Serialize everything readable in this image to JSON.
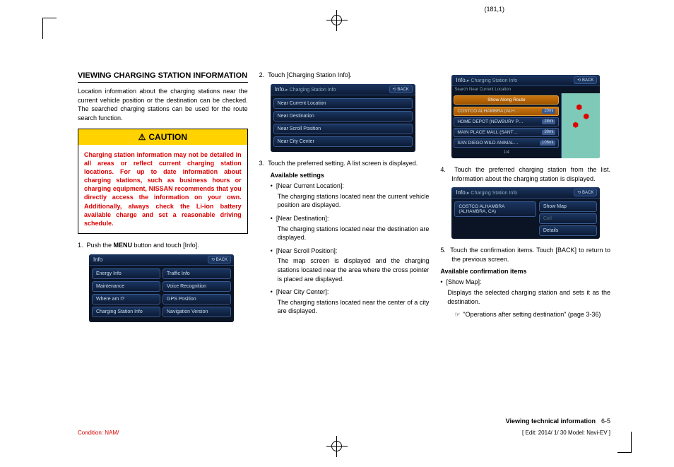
{
  "page_coord": "(181,1)",
  "heading": "VIEWING CHARGING STATION INFORMATION",
  "intro": "Location information about the charging stations near the current vehicle position or the destination can be checked. The searched charging stations can be used for the route search function.",
  "caution_title": "CAUTION",
  "caution_body": "Charging station information may not be detailed in all areas or reflect current charging station locations. For up to date information about charging stations, such as business hours or charging equipment, NISSAN recommends that you directly access the information on your own. Additionally, always check the Li-ion battery available charge and set a reasonable driving schedule.",
  "step1_pre": "Push the ",
  "step1_bold": "MENU",
  "step1_post": " button and touch [Info].",
  "screen1": {
    "title": "Info",
    "back": "BACK",
    "rows": [
      [
        "Energy Info",
        "Traffic Info"
      ],
      [
        "Maintenance",
        "Voice Recognition"
      ],
      [
        "Where am I?",
        "GPS Position"
      ],
      [
        "Charging Station Info",
        "Navigation Version"
      ]
    ]
  },
  "step2": "Touch [Charging Station Info].",
  "screen2": {
    "title": "Info.",
    "crumb": "Charging Station Info",
    "back": "BACK",
    "items": [
      "Near Current Location",
      "Near Destination",
      "Near Scroll Position",
      "Near City Center"
    ]
  },
  "step3": "Touch the preferred setting. A list screen is displayed.",
  "avail_settings": "Available settings",
  "settings": [
    {
      "label": "[Near Current Location]:",
      "desc": "The charging stations located near the current vehicle position are displayed."
    },
    {
      "label": "[Near Destination]:",
      "desc": "The charging stations located near the destination are displayed."
    },
    {
      "label": "[Near Scroll Position]:",
      "desc": "The map screen is displayed and the charging stations located near the area where the cross pointer is placed are displayed."
    },
    {
      "label": "[Near City Center]:",
      "desc": "The charging stations located near the center of a city are displayed."
    }
  ],
  "screen3": {
    "title": "Info.",
    "crumb": "Charging Station Info",
    "back": "BACK",
    "search_label": "Search Near Current Location",
    "route_btn": "Show Along Route",
    "list": [
      {
        "name": "COSTCO ALHAMBRA (ALH…",
        "dist": "20mi",
        "hl": true
      },
      {
        "name": "HOME DEPOT (NEWBURY P…",
        "dist": "28mi"
      },
      {
        "name": "MAIN PLACE MALL (SANT…",
        "dist": "39mi"
      },
      {
        "name": "SAN DIEGO WILD ANIMAL…",
        "dist": "106mi"
      }
    ],
    "page": "1/4"
  },
  "step4": "Touch the preferred charging station from the list. Information about the charging station is displayed.",
  "screen4": {
    "title": "Info.",
    "crumb": "Charging Station Info",
    "back": "BACK",
    "item": "COSTCO ALHAMBRA (ALHAMBRA, CA)",
    "btns": [
      "Show Map",
      "Call",
      "Details"
    ]
  },
  "step5": "Touch the confirmation items. Touch [BACK] to return to the previous screen.",
  "avail_conf": "Available confirmation items",
  "conf": [
    {
      "label": "[Show Map]:",
      "desc": "Displays the selected charging station and sets it as the destination."
    }
  ],
  "ref": "\"Operations after setting destination\" (page 3-36)",
  "footer_section": "Viewing technical information",
  "footer_page": "6-5",
  "condition": "Condition: NAM/",
  "edit_info": "[ Edit: 2014/ 1/ 30  Model: Navi-EV ]"
}
